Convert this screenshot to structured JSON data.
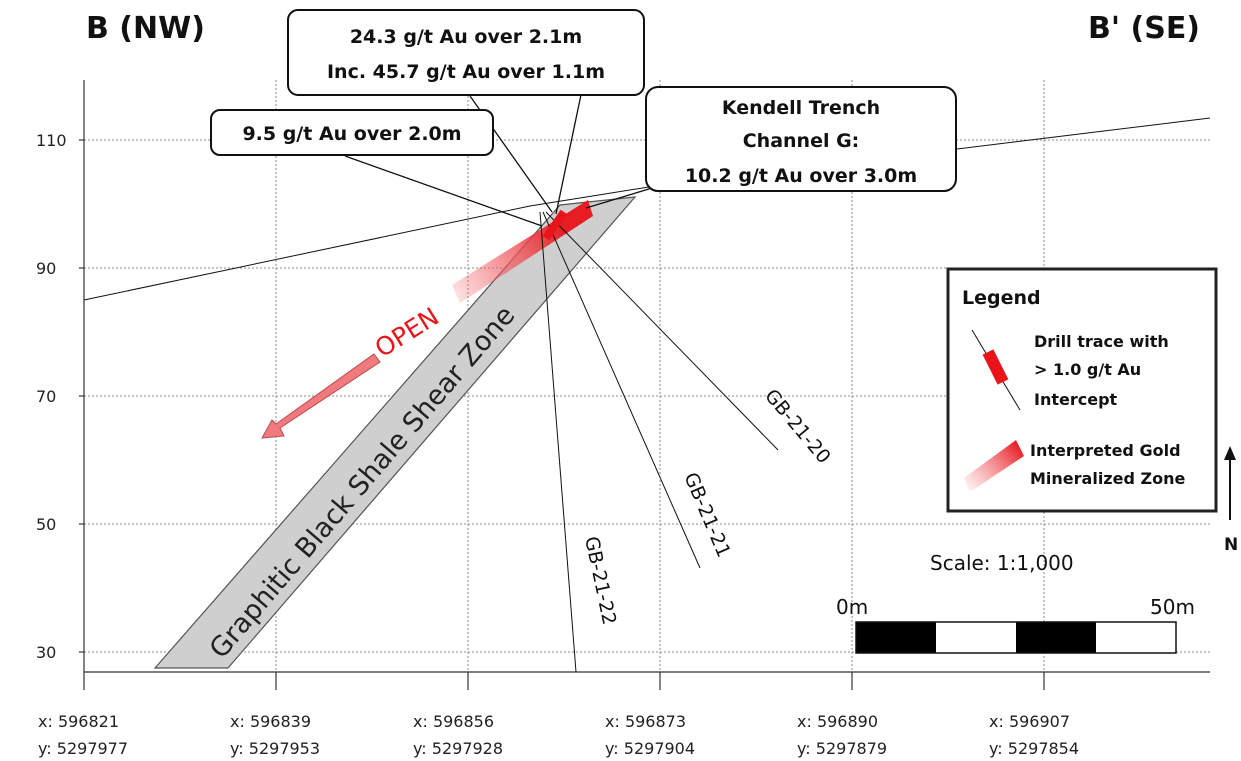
{
  "section": {
    "title_left": "B (NW)",
    "title_right": "B' (SE)"
  },
  "elevation_axis": {
    "ticks": [
      "110",
      "90",
      "70",
      "50",
      "30"
    ]
  },
  "coordinates": [
    {
      "x": "x: 596821",
      "y": "y: 5297977"
    },
    {
      "x": "x: 596839",
      "y": "y: 5297953"
    },
    {
      "x": "x: 596856",
      "y": "y: 5297928"
    },
    {
      "x": "x: 596873",
      "y": "y: 5297904"
    },
    {
      "x": "x: 596890",
      "y": "y: 5297879"
    },
    {
      "x": "x: 596907",
      "y": "y: 5297854"
    }
  ],
  "callouts": {
    "hole_a": {
      "line1": "24.3 g/t Au over 2.1m",
      "line2": "Inc. 45.7 g/t Au over 1.1m"
    },
    "hole_b": {
      "line1": "9.5 g/t Au over 2.0m"
    },
    "trench": {
      "line1": "Kendell Trench",
      "line2": "Channel G:",
      "line3": "10.2 g/t Au over 3.0m"
    }
  },
  "drill_holes": [
    "GB-21-20",
    "GB-21-21",
    "GB-21-22"
  ],
  "shear_zone_label": "Graphitic Black Shale Shear Zone",
  "open_label": "OPEN",
  "legend": {
    "title": "Legend",
    "drill_trace": {
      "line1": "Drill trace with",
      "line2": "> 1.0 g/t Au",
      "line3": "Intercept"
    },
    "mineralized_zone": {
      "line1": "Interpreted Gold",
      "line2": "Mineralized Zone"
    }
  },
  "north_label": "N",
  "scale": {
    "text": "Scale: 1:1,000",
    "start_label": "0m",
    "end_label": "50m"
  },
  "colors": {
    "intercept_red": "#e8141a",
    "mineralized_zone": "#f05a5f",
    "shear_zone_fill": "#cfcfcf"
  }
}
